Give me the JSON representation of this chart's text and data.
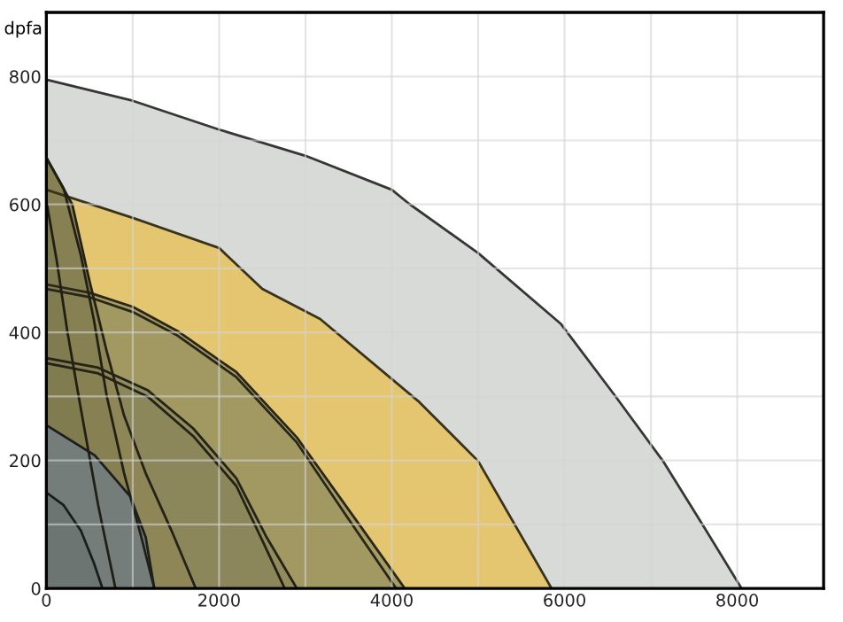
{
  "chart_data": {
    "type": "area",
    "ylabel": "dpfa",
    "xlim": [
      0,
      9000
    ],
    "ylim": [
      0,
      900
    ],
    "xticks": [
      0,
      {
        "value": 1000,
        "label": null
      },
      2000,
      {
        "value": 3000,
        "label": null
      },
      4000,
      {
        "value": 5000,
        "label": null
      },
      6000,
      {
        "value": 7000,
        "label": null
      },
      8000,
      {
        "value": 9000,
        "label": null
      }
    ],
    "yticks": [
      0,
      {
        "value": 100,
        "label": null
      },
      200,
      {
        "value": 300,
        "label": null
      },
      400,
      {
        "value": 500,
        "label": null
      },
      600,
      {
        "value": 700,
        "label": null
      },
      800,
      {
        "value": 900,
        "label": null
      }
    ],
    "grid": true,
    "series": [
      {
        "color": "#d8dad8",
        "x": [
          0,
          1000,
          2000,
          3000,
          4000,
          4200,
          5000,
          5960,
          6580,
          7140,
          7610,
          8050
        ],
        "values": [
          795,
          762,
          717,
          676,
          623,
          601,
          524,
          413,
          302,
          199,
          97,
          0
        ]
      },
      {
        "color": "#e3c66f",
        "x": [
          0,
          1000,
          2000,
          2500,
          3170,
          4320,
          5000,
          5850
        ],
        "values": [
          623,
          579,
          532,
          468,
          421,
          291,
          199,
          0
        ]
      },
      {
        "color": "#a69d66",
        "x": [
          0,
          500,
          1000,
          1520,
          2200,
          2900,
          3580,
          4150
        ],
        "values": [
          475,
          462,
          440,
          402,
          338,
          236,
          108,
          0
        ]
      },
      {
        "color": "#a19862",
        "x": [
          0,
          500,
          1000,
          1520,
          2200,
          2900,
          3500,
          4050
        ],
        "values": [
          468,
          455,
          432,
          395,
          330,
          228,
          108,
          0
        ]
      },
      {
        "color": "#918b5d",
        "x": [
          0,
          600,
          1170,
          1700,
          2200,
          2550,
          2900
        ],
        "values": [
          360,
          345,
          310,
          250,
          172,
          80,
          0
        ]
      },
      {
        "color": "#8c875a",
        "x": [
          0,
          600,
          1170,
          1700,
          2200,
          2500,
          2760
        ],
        "values": [
          352,
          336,
          300,
          238,
          160,
          75,
          0
        ]
      },
      {
        "color": "#8e8656",
        "x": [
          0,
          300,
          500,
          700,
          900,
          1150,
          1450,
          1730
        ],
        "values": [
          673,
          600,
          480,
          370,
          270,
          180,
          90,
          0
        ]
      },
      {
        "color": "#878052",
        "x": [
          0,
          200,
          400,
          550,
          700,
          900,
          1100,
          1250
        ],
        "values": [
          673,
          625,
          520,
          420,
          300,
          180,
          80,
          0
        ]
      },
      {
        "color": "#817b50",
        "x": [
          0,
          120,
          245,
          400,
          600,
          800
        ],
        "values": [
          606,
          512,
          400,
          280,
          130,
          0
        ]
      },
      {
        "color": "#747d79",
        "x": [
          0,
          560,
          970,
          1150,
          1250
        ],
        "values": [
          255,
          208,
          144,
          80,
          0
        ]
      },
      {
        "color": "#6c7571",
        "x": [
          0,
          200,
          400,
          550,
          650
        ],
        "values": [
          150,
          130,
          90,
          40,
          0
        ]
      }
    ]
  }
}
